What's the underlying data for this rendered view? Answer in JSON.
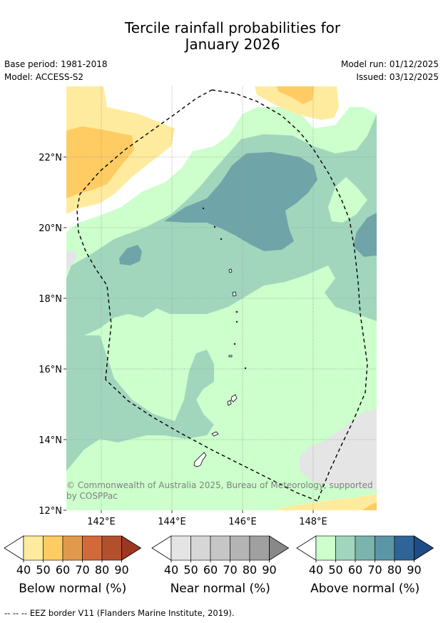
{
  "header": {
    "title_line1": "Tercile rainfall probabilities for",
    "title_line2": "January 2026",
    "base_period": "Base period: 1981-2018",
    "model": "Model: ACCESS-S2",
    "model_run": "Model run: 01/12/2025",
    "issued": "Issued: 03/12/2025"
  },
  "map": {
    "lat_labels": [
      "22°N",
      "20°N",
      "18°N",
      "16°N",
      "14°N",
      "12°N"
    ],
    "lon_labels": [
      "142°E",
      "144°E",
      "146°E",
      "148°E"
    ],
    "copyright": "© Commonwealth of Australia 2025, Bureau of Meteorology, supported",
    "copyright_line2": "by COSPPac",
    "colors": {
      "above_40": "#ccffcc",
      "above_50": "#a1d6bd",
      "above_60": "#6fa5a8",
      "below_40": "#ffeb9e",
      "below_50": "#fecc62",
      "near_40": "#e5e5e5",
      "land": "#ffffff"
    }
  },
  "colorbars": [
    {
      "title": "Below normal (%)",
      "ticks": [
        "40",
        "50",
        "60",
        "70",
        "80",
        "90"
      ],
      "colors": [
        "#ffeb9e",
        "#fecc62",
        "#e19a4d",
        "#d2693a",
        "#b2502d",
        "#9e3722"
      ]
    },
    {
      "title": "Near normal (%)",
      "ticks": [
        "40",
        "50",
        "60",
        "70",
        "80",
        "90"
      ],
      "colors": [
        "#e4e4e4",
        "#d6d6d6",
        "#c6c6c6",
        "#b4b4b4",
        "#a0a0a0",
        "#888888"
      ]
    },
    {
      "title": "Above normal (%)",
      "ticks": [
        "40",
        "50",
        "60",
        "70",
        "80",
        "90"
      ],
      "colors": [
        "#ccffcc",
        "#a1d6bd",
        "#7ab4ad",
        "#5b96a6",
        "#2f6497",
        "#1e4c86"
      ]
    }
  ],
  "footnote": "--  --  -- EEZ border V11 (Flanders Marine Institute, 2019)."
}
